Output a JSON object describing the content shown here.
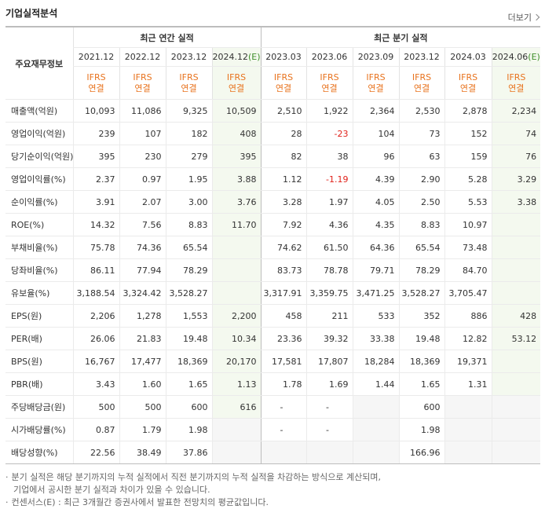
{
  "header": {
    "title": "기업실적분석",
    "more": "더보기"
  },
  "table": {
    "corner": "주요재무정보",
    "groups": [
      {
        "label": "최근 연간 실적",
        "span": 4
      },
      {
        "label": "최근 분기 실적",
        "span": 6
      }
    ],
    "periods": [
      {
        "date": "2021.12"
      },
      {
        "date": "2022.12"
      },
      {
        "date": "2023.12"
      },
      {
        "date": "2024.12",
        "mark": "(E)"
      },
      {
        "date": "2023.03"
      },
      {
        "date": "2023.06"
      },
      {
        "date": "2023.09"
      },
      {
        "date": "2023.12"
      },
      {
        "date": "2024.03"
      },
      {
        "date": "2024.06",
        "mark": "(E)"
      }
    ],
    "basis": [
      [
        "IFRS",
        "연결"
      ],
      [
        "IFRS",
        "연결"
      ],
      [
        "IFRS",
        "연결"
      ],
      [
        "IFRS",
        "연결"
      ],
      [
        "IFRS",
        "연결"
      ],
      [
        "IFRS",
        "연결"
      ],
      [
        "IFRS",
        "연결"
      ],
      [
        "IFRS",
        "연결"
      ],
      [
        "IFRS",
        "연결"
      ],
      [
        "IFRS",
        "연결"
      ]
    ],
    "rows": [
      {
        "label": "매출액(억원)",
        "values": [
          "10,093",
          "11,086",
          "9,325",
          "10,509",
          "2,510",
          "1,922",
          "2,364",
          "2,530",
          "2,878",
          "2,234"
        ]
      },
      {
        "label": "영업이익(억원)",
        "values": [
          "239",
          "107",
          "182",
          "408",
          "28",
          "-23",
          "104",
          "73",
          "152",
          "74"
        ]
      },
      {
        "label": "당기순이익(억원)",
        "values": [
          "395",
          "230",
          "279",
          "395",
          "82",
          "38",
          "96",
          "63",
          "159",
          "76"
        ]
      },
      {
        "label": "영업이익률(%)",
        "values": [
          "2.37",
          "0.97",
          "1.95",
          "3.88",
          "1.12",
          "-1.19",
          "4.39",
          "2.90",
          "5.28",
          "3.29"
        ]
      },
      {
        "label": "순이익률(%)",
        "values": [
          "3.91",
          "2.07",
          "3.00",
          "3.76",
          "3.28",
          "1.97",
          "4.05",
          "2.50",
          "5.53",
          "3.38"
        ]
      },
      {
        "label": "ROE(%)",
        "values": [
          "14.32",
          "7.56",
          "8.83",
          "11.70",
          "7.92",
          "4.36",
          "4.35",
          "8.83",
          "10.97",
          null
        ]
      },
      {
        "label": "부채비율(%)",
        "values": [
          "75.78",
          "74.36",
          "65.54",
          null,
          "74.62",
          "61.50",
          "64.36",
          "65.54",
          "73.48",
          null
        ]
      },
      {
        "label": "당좌비율(%)",
        "values": [
          "86.11",
          "77.94",
          "78.29",
          null,
          "83.73",
          "78.78",
          "79.71",
          "78.29",
          "84.70",
          null
        ]
      },
      {
        "label": "유보율(%)",
        "values": [
          "3,188.54",
          "3,324.42",
          "3,528.27",
          null,
          "3,317.91",
          "3,359.75",
          "3,471.25",
          "3,528.27",
          "3,705.47",
          null
        ]
      },
      {
        "label": "EPS(원)",
        "values": [
          "2,206",
          "1,278",
          "1,553",
          "2,200",
          "458",
          "211",
          "533",
          "352",
          "886",
          "428"
        ]
      },
      {
        "label": "PER(배)",
        "values": [
          "26.06",
          "21.83",
          "19.48",
          "10.34",
          "23.36",
          "39.32",
          "33.38",
          "19.48",
          "12.82",
          "53.12"
        ]
      },
      {
        "label": "BPS(원)",
        "values": [
          "16,767",
          "17,477",
          "18,369",
          "20,170",
          "17,581",
          "17,807",
          "18,284",
          "18,369",
          "19,371",
          null
        ]
      },
      {
        "label": "PBR(배)",
        "values": [
          "3.43",
          "1.60",
          "1.65",
          "1.13",
          "1.78",
          "1.69",
          "1.44",
          "1.65",
          "1.31",
          null
        ]
      },
      {
        "label": "주당배당금(원)",
        "values": [
          "500",
          "500",
          "600",
          "616",
          "-",
          "-",
          null,
          "600",
          null,
          null
        ]
      },
      {
        "label": "시가배당률(%)",
        "values": [
          "0.87",
          "1.79",
          "1.98",
          null,
          "-",
          "-",
          null,
          "1.98",
          null,
          null
        ]
      },
      {
        "label": "배당성향(%)",
        "values": [
          "22.56",
          "38.49",
          "37.86",
          null,
          null,
          null,
          null,
          "166.96",
          null,
          null
        ]
      }
    ]
  },
  "notes": [
    "분기 실적은 해당 분기까지의 누적 실적에서 직전 분기까지의 누적 실적을 차감하는 방식으로 계산되며,",
    "기업에서 공시한 분기 실적과 차이가 있을 수 있습니다.",
    "컨센서스(E) : 최근 3개월간 증권사에서 발표한 전망치의 평균값입니다."
  ]
}
